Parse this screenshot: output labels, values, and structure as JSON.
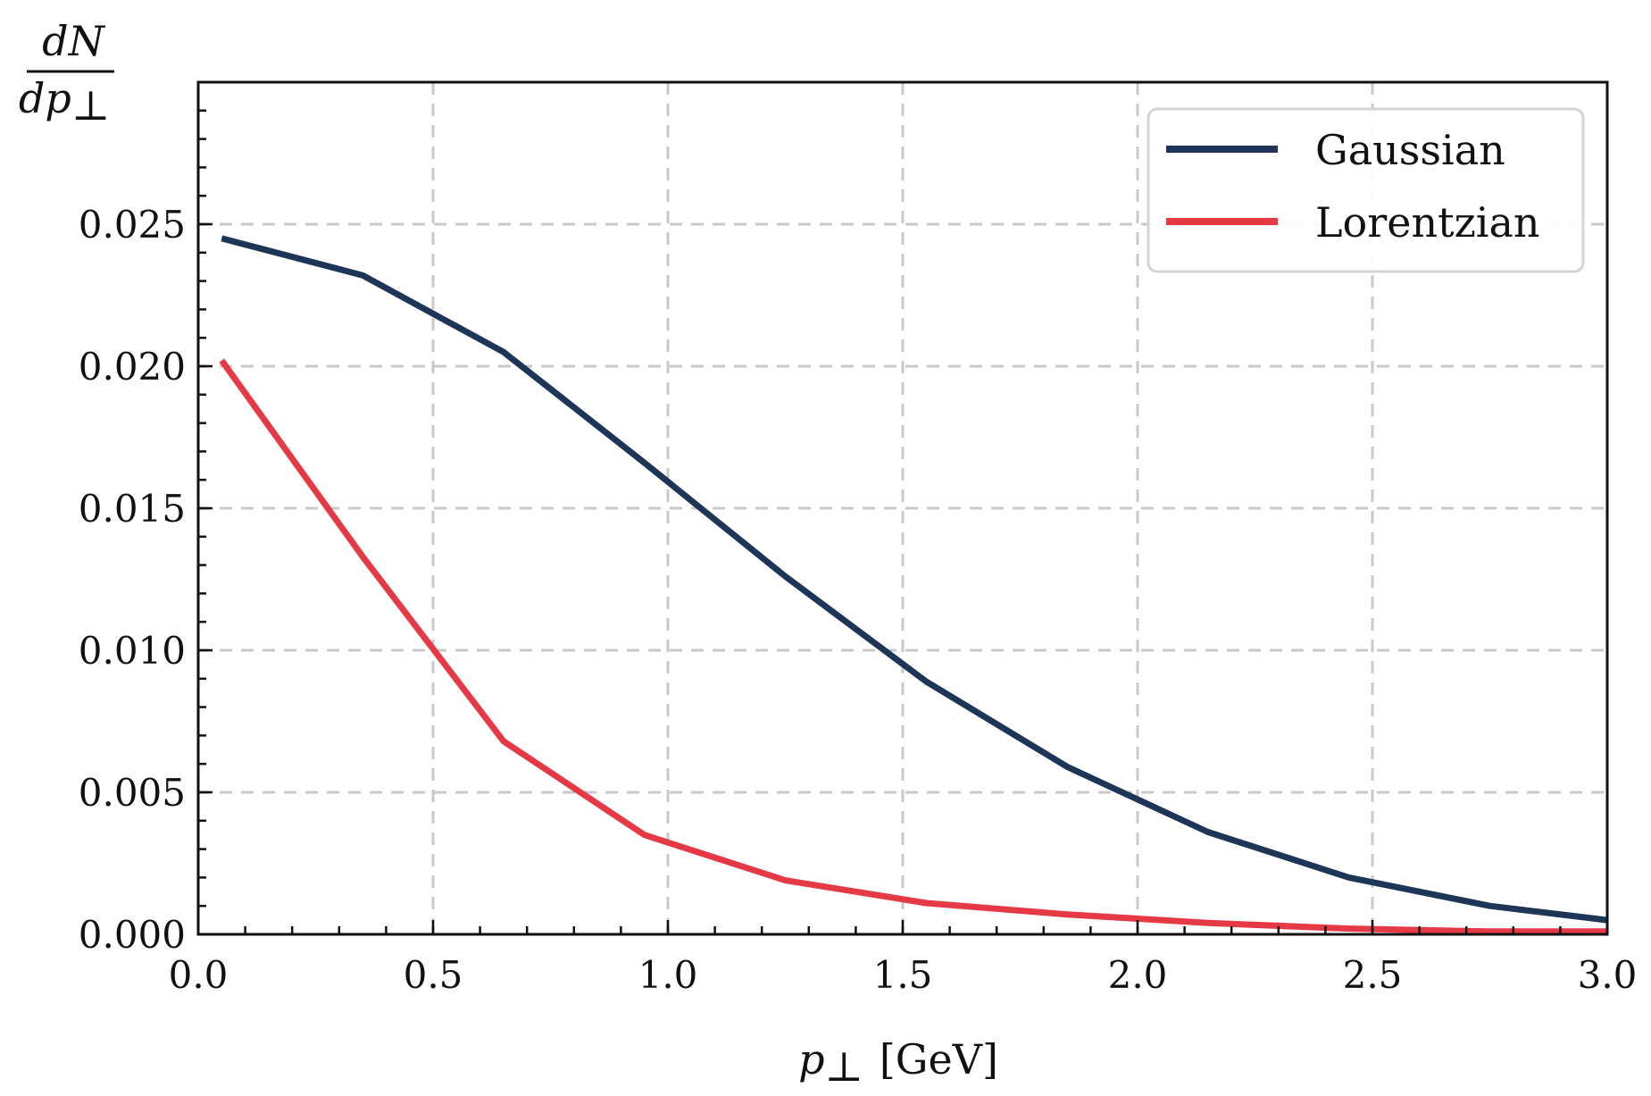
{
  "chart_data": {
    "type": "line",
    "title": "",
    "xlabel_main": "p",
    "xlabel_sub": "⊥",
    "xlabel_unit": "[GeV]",
    "ylabel_numerator": "dN",
    "ylabel_denominator": "dp",
    "ylabel_denominator_sub": "⊥",
    "xlim": [
      0.0,
      3.0
    ],
    "ylim": [
      0.0,
      0.03
    ],
    "xticks": [
      0.0,
      0.5,
      1.0,
      1.5,
      2.0,
      2.5,
      3.0
    ],
    "xtick_labels": [
      "0.0",
      "0.5",
      "1.0",
      "1.5",
      "2.0",
      "2.5",
      "3.0"
    ],
    "yticks": [
      0.0,
      0.005,
      0.01,
      0.015,
      0.02,
      0.025
    ],
    "ytick_labels": [
      "0.000",
      "0.005",
      "0.010",
      "0.015",
      "0.020",
      "0.025"
    ],
    "grid": true,
    "legend_position": "top-right",
    "series": [
      {
        "name": "Gaussian",
        "color": "#1d3557",
        "x": [
          0.05,
          0.35,
          0.65,
          0.95,
          1.25,
          1.55,
          1.85,
          2.15,
          2.45,
          2.75,
          3.0
        ],
        "y": [
          0.0245,
          0.0232,
          0.0205,
          0.0166,
          0.0126,
          0.0089,
          0.0059,
          0.0036,
          0.002,
          0.001,
          0.0005
        ]
      },
      {
        "name": "Lorentzian",
        "color": "#e63946",
        "x": [
          0.05,
          0.35,
          0.65,
          0.95,
          1.25,
          1.55,
          1.85,
          2.15,
          2.45,
          2.75,
          3.0
        ],
        "y": [
          0.0202,
          0.0133,
          0.0068,
          0.0035,
          0.0019,
          0.0011,
          0.0007,
          0.0004,
          0.0002,
          0.0001,
          0.0001
        ]
      }
    ]
  }
}
